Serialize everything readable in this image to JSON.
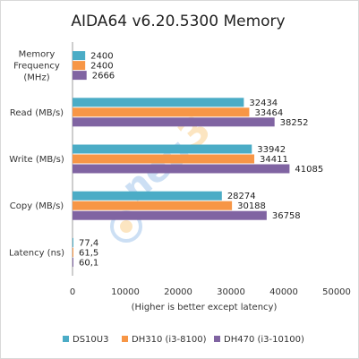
{
  "chart_data": {
    "type": "bar",
    "orientation": "horizontal",
    "title": "AIDA64 v6.20.5300 Memory",
    "categories": [
      "Memory Frequency (MHz)",
      "Read (MB/s)",
      "Write (MB/s)",
      "Copy (MB/s)",
      "Latency (ns)"
    ],
    "category_lines": [
      [
        "Memory",
        "Frequency",
        "(MHz)"
      ],
      [
        "Read (MB/s)"
      ],
      [
        "Write (MB/s)"
      ],
      [
        "Copy (MB/s)"
      ],
      [
        "Latency (ns)"
      ]
    ],
    "series": [
      {
        "name": "DS10U3",
        "color": "#4bacc6",
        "values": [
          2400,
          32434,
          33942,
          28274,
          77.4
        ],
        "labels": [
          "2400",
          "32434",
          "33942",
          "28274",
          "77,4"
        ]
      },
      {
        "name": "DH310 (i3-8100)",
        "color": "#f79646",
        "values": [
          2400,
          33464,
          34411,
          30188,
          61.5
        ],
        "labels": [
          "2400",
          "33464",
          "34411",
          "30188",
          "61,5"
        ]
      },
      {
        "name": "DH470 (i3-10100)",
        "color": "#8064a2",
        "values": [
          2666,
          38252,
          41085,
          36758,
          60.1
        ],
        "labels": [
          "2666",
          "38252",
          "41085",
          "36758",
          "60,1"
        ]
      }
    ],
    "xlim": [
      0,
      50000
    ],
    "xticks": [
      0,
      10000,
      20000,
      30000,
      40000,
      50000
    ],
    "xlabel": "(Higher is better except latency)",
    "ylabel": "",
    "grid": false,
    "legend": "bottom"
  }
}
